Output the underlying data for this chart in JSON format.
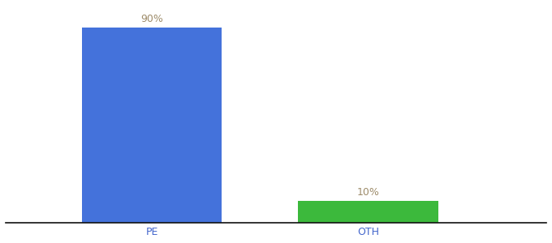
{
  "categories": [
    "PE",
    "OTH"
  ],
  "values": [
    90,
    10
  ],
  "bar_colors": [
    "#4472db",
    "#3cb93c"
  ],
  "label_texts": [
    "90%",
    "10%"
  ],
  "ylim": [
    0,
    100
  ],
  "background_color": "#ffffff",
  "label_color": "#9e8c6a",
  "axis_label_color": "#4466cc",
  "bar_width": 0.22,
  "tick_fontsize": 9,
  "annotation_fontsize": 9,
  "x_positions": [
    0.28,
    0.62
  ]
}
